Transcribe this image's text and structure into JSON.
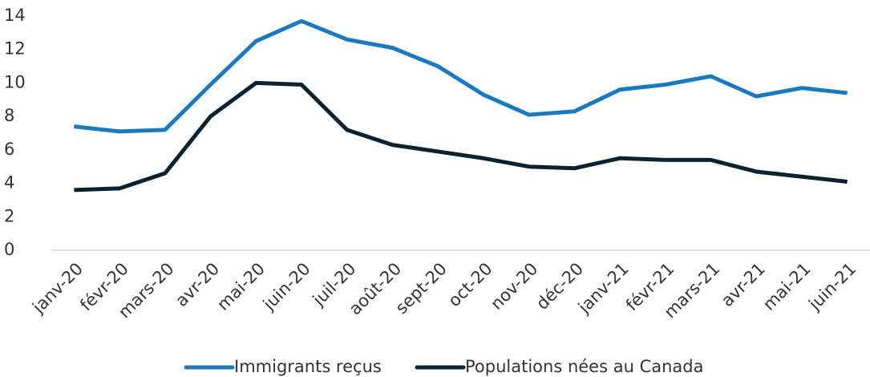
{
  "chart_data": {
    "type": "line",
    "categories": [
      "janv-20",
      "févr-20",
      "mars-20",
      "avr-20",
      "mai-20",
      "juin-20",
      "juil-20",
      "août-20",
      "sept-20",
      "oct-20",
      "nov-20",
      "déc-20",
      "janv-21",
      "févr-21",
      "mars-21",
      "avr-21",
      "mai-21",
      "juin-21"
    ],
    "series": [
      {
        "name": "Immigrants reçus",
        "color": "#1a7abf",
        "values": [
          7.4,
          7.1,
          7.2,
          9.9,
          12.5,
          13.7,
          12.6,
          12.1,
          11.0,
          9.3,
          8.1,
          8.3,
          9.6,
          9.9,
          10.4,
          9.2,
          9.7,
          9.4
        ]
      },
      {
        "name": "Populations nées au Canada",
        "color": "#0d2230",
        "values": [
          3.6,
          3.7,
          4.6,
          8.0,
          10.0,
          9.9,
          7.2,
          6.3,
          5.9,
          5.5,
          5.0,
          4.9,
          5.5,
          5.4,
          5.4,
          4.7,
          4.4,
          4.1
        ]
      }
    ],
    "ylim": [
      0,
      14
    ],
    "yticks": [
      0,
      2,
      4,
      6,
      8,
      10,
      12,
      14
    ],
    "grid": false,
    "legend": "bottom"
  }
}
